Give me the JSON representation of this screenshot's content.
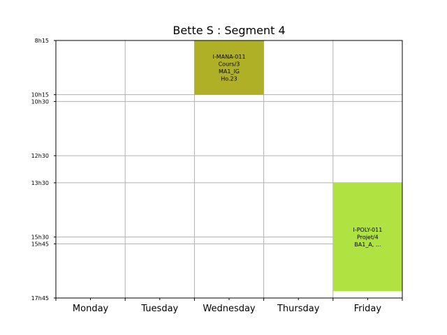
{
  "chart_data": {
    "type": "timetable",
    "title": "Bette S : Segment 4",
    "days": [
      "Monday",
      "Tuesday",
      "Wednesday",
      "Thursday",
      "Friday"
    ],
    "time_ticks": [
      "8h15",
      "10h15",
      "10h30",
      "12h30",
      "13h30",
      "15h30",
      "15h45",
      "17h45"
    ],
    "time_range": [
      "8h15",
      "17h45"
    ],
    "grid": true,
    "events": [
      {
        "day": "Wednesday",
        "start": "8h15",
        "end": "10h15",
        "color": "#b0b026",
        "lines": [
          "I-MANA-011",
          "Cours/3",
          "MA1_IG",
          "Ho.23"
        ]
      },
      {
        "day": "Friday",
        "start": "13h30",
        "end": "17h30",
        "color": "#b0e342",
        "lines": [
          "I-POLY-011",
          "Projet/4",
          "BA1_A, ..."
        ]
      }
    ]
  }
}
